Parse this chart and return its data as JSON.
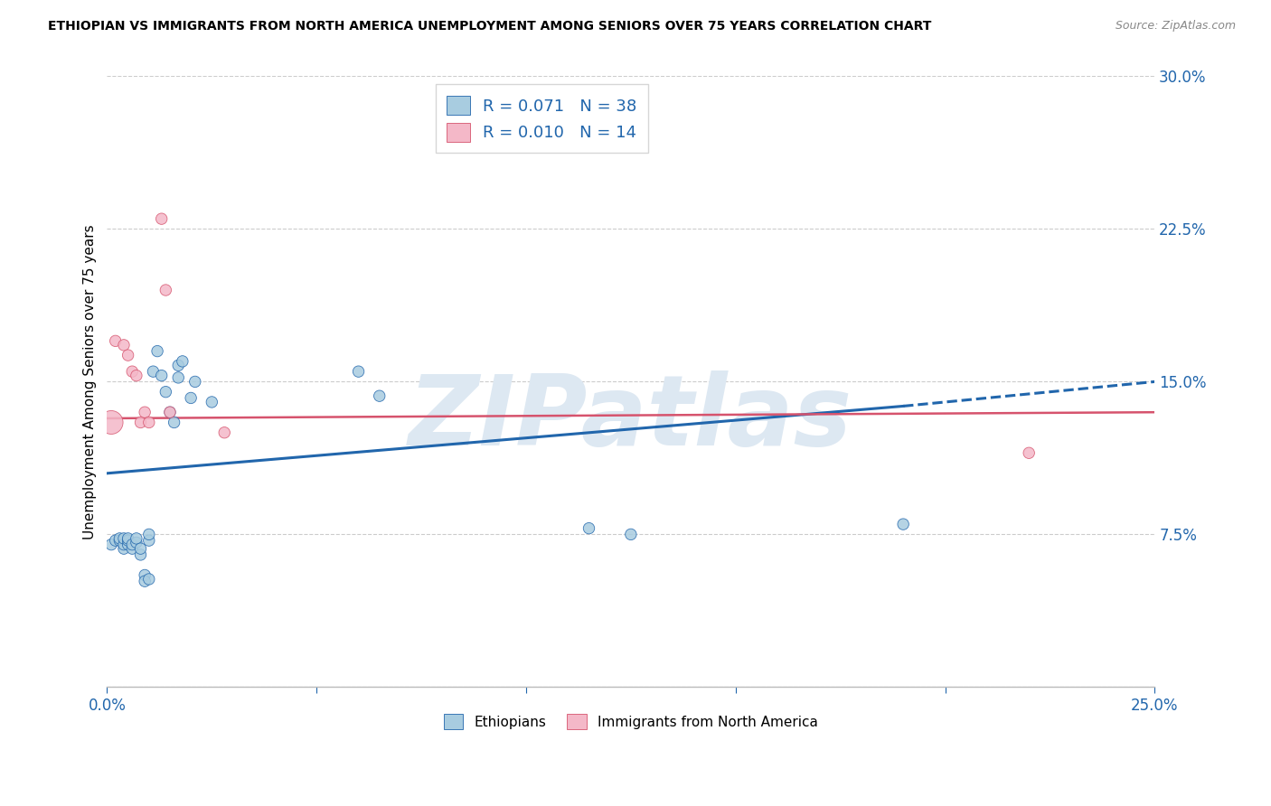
{
  "title": "ETHIOPIAN VS IMMIGRANTS FROM NORTH AMERICA UNEMPLOYMENT AMONG SENIORS OVER 75 YEARS CORRELATION CHART",
  "source": "Source: ZipAtlas.com",
  "ylabel": "Unemployment Among Seniors over 75 years",
  "xlim": [
    0.0,
    0.25
  ],
  "ylim": [
    0.0,
    0.3
  ],
  "xticks": [
    0.0,
    0.05,
    0.1,
    0.15,
    0.2,
    0.25
  ],
  "yticks": [
    0.0,
    0.075,
    0.15,
    0.225,
    0.3
  ],
  "blue_color": "#a8cce0",
  "pink_color": "#f4b8c8",
  "trendline_blue": "#2166ac",
  "trendline_pink": "#d6536d",
  "label_color": "#2166ac",
  "R_blue": 0.071,
  "N_blue": 38,
  "R_pink": 0.01,
  "N_pink": 14,
  "blue_x": [
    0.001,
    0.002,
    0.003,
    0.003,
    0.004,
    0.004,
    0.004,
    0.005,
    0.005,
    0.005,
    0.006,
    0.006,
    0.007,
    0.007,
    0.008,
    0.008,
    0.009,
    0.009,
    0.01,
    0.01,
    0.01,
    0.011,
    0.012,
    0.013,
    0.014,
    0.015,
    0.016,
    0.017,
    0.017,
    0.018,
    0.02,
    0.021,
    0.025,
    0.06,
    0.065,
    0.115,
    0.125,
    0.19
  ],
  "blue_y": [
    0.07,
    0.072,
    0.072,
    0.073,
    0.068,
    0.07,
    0.073,
    0.07,
    0.072,
    0.073,
    0.068,
    0.07,
    0.071,
    0.073,
    0.065,
    0.068,
    0.055,
    0.052,
    0.053,
    0.072,
    0.075,
    0.155,
    0.165,
    0.153,
    0.145,
    0.135,
    0.13,
    0.152,
    0.158,
    0.16,
    0.142,
    0.15,
    0.14,
    0.155,
    0.143,
    0.078,
    0.075,
    0.08
  ],
  "pink_x": [
    0.001,
    0.002,
    0.004,
    0.005,
    0.006,
    0.007,
    0.008,
    0.009,
    0.01,
    0.013,
    0.014,
    0.015,
    0.028,
    0.22
  ],
  "pink_y": [
    0.13,
    0.17,
    0.168,
    0.163,
    0.155,
    0.153,
    0.13,
    0.135,
    0.13,
    0.23,
    0.195,
    0.135,
    0.125,
    0.115
  ],
  "blue_sizes": [
    80,
    80,
    80,
    80,
    80,
    80,
    80,
    80,
    80,
    80,
    80,
    80,
    80,
    80,
    80,
    80,
    80,
    80,
    80,
    80,
    80,
    80,
    80,
    80,
    80,
    80,
    80,
    80,
    80,
    80,
    80,
    80,
    80,
    80,
    80,
    80,
    80,
    80
  ],
  "pink_sizes": [
    350,
    80,
    80,
    80,
    80,
    80,
    80,
    80,
    80,
    80,
    80,
    80,
    80,
    80
  ],
  "legend_labels_bottom": [
    "Ethiopians",
    "Immigrants from North America"
  ],
  "watermark": "ZIPatlas",
  "watermark_color": "#dde8f2"
}
